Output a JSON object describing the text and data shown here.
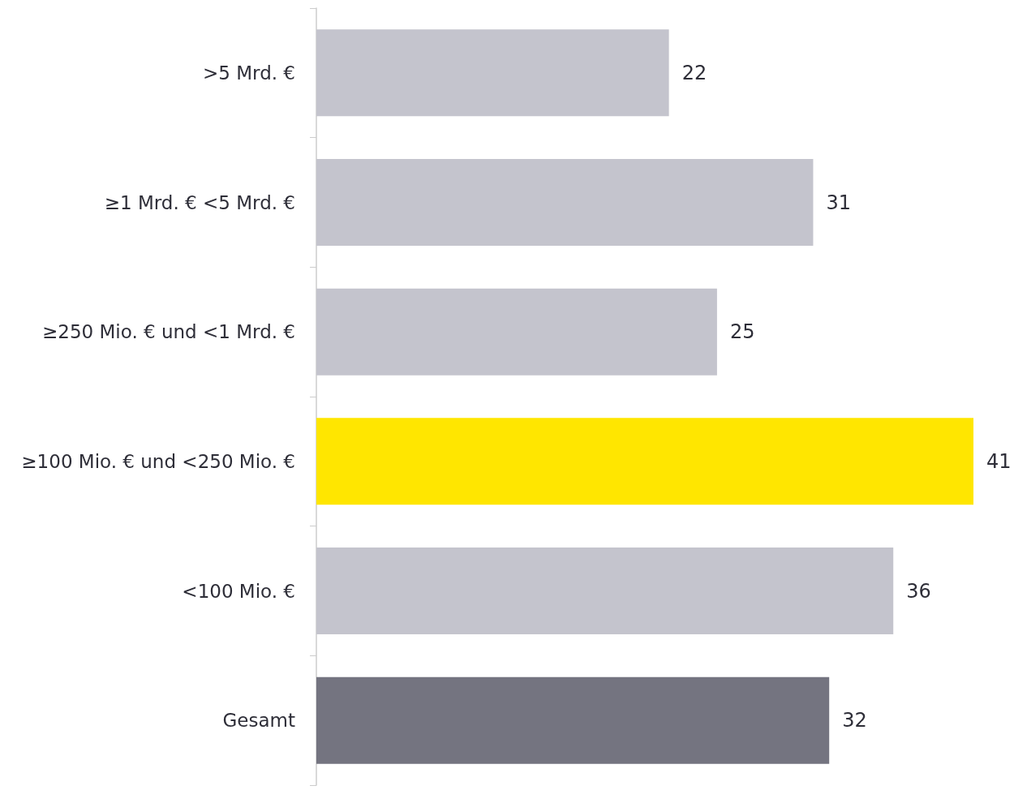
{
  "chart_data": {
    "type": "bar",
    "orientation": "horizontal",
    "categories": [
      ">5 Mrd. €",
      "≥1 Mrd. € <5 Mrd. €",
      "≥250 Mio. € und <1 Mrd. €",
      "≥100 Mio. € und <250 Mio. €",
      "<100 Mio. €",
      "Gesamt"
    ],
    "values": [
      22,
      31,
      25,
      41,
      36,
      32
    ],
    "colors": [
      "#c4c4cd",
      "#c4c4cd",
      "#c4c4cd",
      "#ffe600",
      "#c4c4cd",
      "#747480"
    ],
    "data_labels": true
  }
}
